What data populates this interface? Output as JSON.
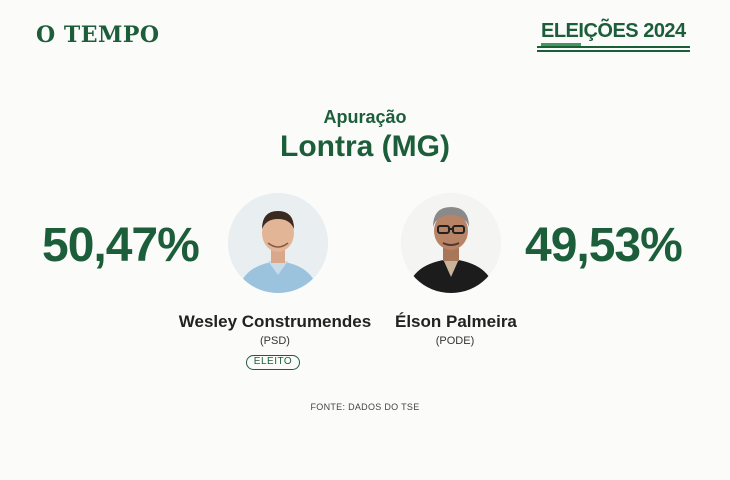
{
  "header": {
    "logo": "O TEMPO",
    "badge": "ELEIÇÕES 2024"
  },
  "main": {
    "subtitle": "Apuração",
    "title": "Lontra (MG)"
  },
  "candidates": [
    {
      "percent": "50,47%",
      "name": "Wesley Construmendes",
      "party": "(PSD)",
      "status": "ELEITO"
    },
    {
      "percent": "49,53%",
      "name": "Élson Palmeira",
      "party": "(PODE)"
    }
  ],
  "footer": {
    "source": "FONTE: DADOS DO TSE"
  },
  "colors": {
    "brand_green": "#1d5e3a",
    "background": "#fbfbfa"
  }
}
